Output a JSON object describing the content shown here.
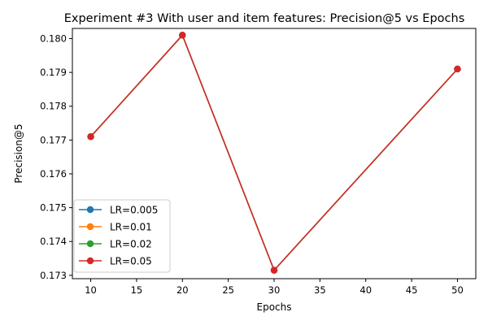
{
  "chart_data": {
    "type": "line",
    "title": "Experiment #3 With user and item features: Precision@5 vs Epochs",
    "xlabel": "Epochs",
    "ylabel": "Precision@5",
    "xlim": [
      8,
      52
    ],
    "ylim": [
      0.1729,
      0.1803
    ],
    "xticks": [
      10,
      15,
      20,
      25,
      30,
      35,
      40,
      45,
      50
    ],
    "yticks": [
      0.173,
      0.174,
      0.175,
      0.176,
      0.177,
      0.178,
      0.179,
      0.18
    ],
    "x": [
      10,
      20,
      30,
      50
    ],
    "series": [
      {
        "name": "LR=0.005",
        "color": "#1f77b4",
        "values": [
          0.1771,
          0.1801,
          0.17315,
          0.1791
        ]
      },
      {
        "name": "LR=0.01",
        "color": "#ff7f0e",
        "values": [
          0.1771,
          0.1801,
          0.17315,
          0.1791
        ]
      },
      {
        "name": "LR=0.02",
        "color": "#2ca02c",
        "values": [
          0.1771,
          0.1801,
          0.17315,
          0.1791
        ]
      },
      {
        "name": "LR=0.05",
        "color": "#d62728",
        "values": [
          0.1771,
          0.1801,
          0.17315,
          0.1791
        ]
      }
    ],
    "legend_position": "lower-left",
    "grid": false
  }
}
